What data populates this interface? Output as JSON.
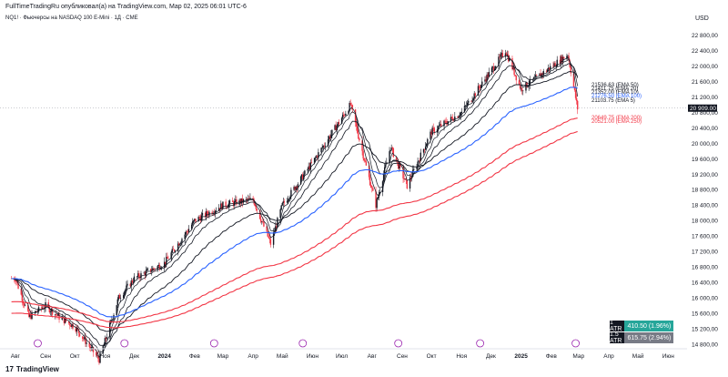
{
  "header": "FullTimeTradingRu опубликовал(а) на TradingView.com, Мар 02, 2025 06:01 UTC-6",
  "subtitle": "NQ1! · Фьючерсы на NASDAQ 100 E-Mini · 1Д · CME",
  "currency": "USD",
  "footer": {
    "logo_icon": "tradingview-logo-icon",
    "brand": "TradingView"
  },
  "atr": [
    {
      "label": "1 ATR",
      "value": "410.50 (1.96%)",
      "color": "#26a69a"
    },
    {
      "label": "1.5 ATR",
      "value": "615.75 (2.94%)",
      "color": "#787b86"
    }
  ],
  "ema_labels": [
    {
      "text": "21536.63 (EMA 50)",
      "color": "#131722"
    },
    {
      "text": "21411.75 (EMA 20)",
      "color": "#131722"
    },
    {
      "text": "21352.00 (EMA 10)",
      "color": "#131722"
    },
    {
      "text": "21276.50 (EMA 100)",
      "color": "#2962ff"
    },
    {
      "text": "21103.75 (EMA 5)",
      "color": "#131722"
    },
    {
      "text": "20649.75 (EMA 200)",
      "color": "#f23645"
    },
    {
      "text": "20521.00 (EMA 250)",
      "color": "#f23645"
    }
  ],
  "price_marker": "20 909.00",
  "colors": {
    "up": "#131722",
    "down": "#f23645",
    "ema100": "#2962ff",
    "ema200": "#f23645",
    "ema_black": "#131722"
  },
  "chart_data": {
    "type": "candlestick",
    "symbol": "NQ1!",
    "timeframe": "1Д",
    "ylim": [
      14800,
      23000
    ],
    "y_ticks": [
      "22 800,00",
      "22 400,00",
      "22 000,00",
      "21 600,00",
      "21 200,00",
      "20 800,00",
      "20 400,00",
      "20 000,00",
      "19 600,00",
      "19 200,00",
      "18 800,00",
      "18 400,00",
      "18 000,00",
      "17 600,00",
      "17 200,00",
      "16 800,00",
      "16 400,00",
      "16 000,00",
      "15 600,00",
      "15 200,00",
      "14 800,00"
    ],
    "x_ticks": [
      "Авг",
      "Сен",
      "Окт",
      "Ноя",
      "Дек",
      "2024",
      "Фев",
      "Мар",
      "Апр",
      "Май",
      "Июн",
      "Июл",
      "Авг",
      "Сен",
      "Окт",
      "Ноя",
      "Дек",
      "2025",
      "Фев",
      "Мар",
      "Апр",
      "Май",
      "Июн"
    ],
    "price_path": [
      {
        "date": "2023-08",
        "value": 16500
      },
      {
        "date": "2023-08-15",
        "value": 15500
      },
      {
        "date": "2023-09",
        "value": 15800
      },
      {
        "date": "2023-09-15",
        "value": 15500
      },
      {
        "date": "2023-10",
        "value": 15250
      },
      {
        "date": "2023-10-26",
        "value": 14400
      },
      {
        "date": "2023-11-15",
        "value": 16000
      },
      {
        "date": "2023-12",
        "value": 16500
      },
      {
        "date": "2024-01",
        "value": 16900
      },
      {
        "date": "2024-02",
        "value": 18000
      },
      {
        "date": "2024-03",
        "value": 18400
      },
      {
        "date": "2024-04",
        "value": 18550
      },
      {
        "date": "2024-04-19",
        "value": 17400
      },
      {
        "date": "2024-05",
        "value": 18400
      },
      {
        "date": "2024-06",
        "value": 19500
      },
      {
        "date": "2024-07-10",
        "value": 21000
      },
      {
        "date": "2024-08-05",
        "value": 18400
      },
      {
        "date": "2024-08-20",
        "value": 19900
      },
      {
        "date": "2024-09-06",
        "value": 18900
      },
      {
        "date": "2024-10",
        "value": 20300
      },
      {
        "date": "2024-11",
        "value": 20800
      },
      {
        "date": "2024-12-16",
        "value": 22400
      },
      {
        "date": "2025-01",
        "value": 21400
      },
      {
        "date": "2025-02-18",
        "value": 22300
      },
      {
        "date": "2025-02-28",
        "value": 20900
      }
    ],
    "emas": [
      {
        "name": "EMA 5",
        "value": 21103.75
      },
      {
        "name": "EMA 10",
        "value": 21352.0
      },
      {
        "name": "EMA 20",
        "value": 21411.75
      },
      {
        "name": "EMA 50",
        "value": 21536.63
      },
      {
        "name": "EMA 100",
        "value": 21276.5
      },
      {
        "name": "EMA 200",
        "value": 20649.75
      },
      {
        "name": "EMA 250",
        "value": 20521.0
      }
    ],
    "last_price": 20909.0
  }
}
